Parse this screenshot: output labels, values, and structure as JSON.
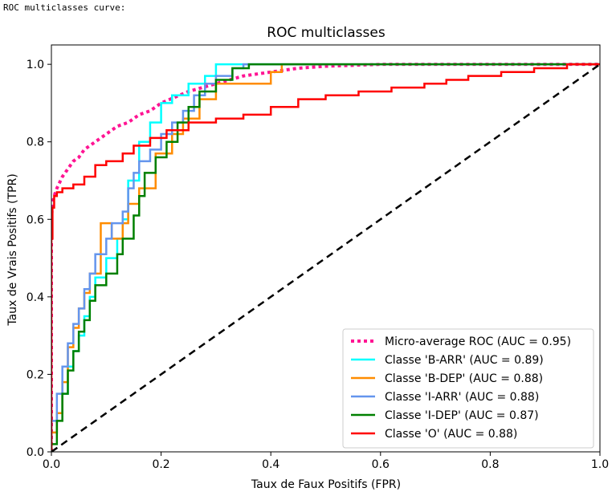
{
  "caption": "ROC multiclasses curve:",
  "chart_data": {
    "type": "line",
    "title": "ROC multiclasses",
    "xlabel": "Taux de Faux Positifs (FPR)",
    "ylabel": "Taux de Vrais Positifs (TPR)",
    "xlim": [
      0.0,
      1.0
    ],
    "ylim": [
      0.0,
      1.05
    ],
    "xticks": [
      "0.0",
      "0.2",
      "0.4",
      "0.6",
      "0.8",
      "1.0"
    ],
    "yticks": [
      "0.0",
      "0.2",
      "0.4",
      "0.6",
      "0.8",
      "1.0"
    ],
    "grid": false,
    "legend_position": "lower-right",
    "diagonal": {
      "color": "#000000",
      "style": "dashed",
      "x": [
        0,
        1
      ],
      "y": [
        0,
        1
      ]
    },
    "series": [
      {
        "name": "Micro-average ROC (AUC = 0.95)",
        "color": "#ff1493",
        "style": "dotted",
        "x": [
          0.0,
          0.0,
          0.002,
          0.005,
          0.01,
          0.02,
          0.03,
          0.04,
          0.05,
          0.06,
          0.08,
          0.1,
          0.12,
          0.14,
          0.16,
          0.18,
          0.2,
          0.25,
          0.3,
          0.35,
          0.4,
          0.45,
          0.5,
          0.6,
          0.7,
          0.8,
          0.9,
          1.0
        ],
        "y": [
          0.0,
          0.6,
          0.64,
          0.66,
          0.68,
          0.71,
          0.73,
          0.75,
          0.76,
          0.78,
          0.8,
          0.82,
          0.84,
          0.85,
          0.87,
          0.88,
          0.9,
          0.93,
          0.95,
          0.97,
          0.98,
          0.99,
          0.995,
          1.0,
          1.0,
          1.0,
          1.0,
          1.0
        ]
      },
      {
        "name": "Classe 'B-ARR' (AUC = 0.89)",
        "color": "#00ffff",
        "style": "step",
        "x": [
          0.0,
          0.0,
          0.01,
          0.01,
          0.02,
          0.02,
          0.03,
          0.03,
          0.04,
          0.04,
          0.05,
          0.05,
          0.06,
          0.06,
          0.07,
          0.07,
          0.08,
          0.08,
          0.1,
          0.1,
          0.12,
          0.12,
          0.13,
          0.13,
          0.14,
          0.14,
          0.16,
          0.16,
          0.18,
          0.18,
          0.2,
          0.2,
          0.22,
          0.22,
          0.25,
          0.25,
          0.28,
          0.28,
          0.3,
          0.3,
          0.35,
          0.35,
          1.0
        ],
        "y": [
          0.0,
          0.05,
          0.05,
          0.1,
          0.1,
          0.15,
          0.15,
          0.22,
          0.22,
          0.26,
          0.26,
          0.3,
          0.3,
          0.35,
          0.35,
          0.4,
          0.4,
          0.45,
          0.45,
          0.5,
          0.5,
          0.55,
          0.55,
          0.6,
          0.6,
          0.7,
          0.7,
          0.8,
          0.8,
          0.85,
          0.85,
          0.9,
          0.9,
          0.92,
          0.92,
          0.95,
          0.95,
          0.97,
          0.97,
          1.0,
          1.0,
          1.0,
          1.0
        ]
      },
      {
        "name": "Classe 'B-DEP' (AUC = 0.88)",
        "color": "#ff8c00",
        "style": "step",
        "x": [
          0.0,
          0.0,
          0.01,
          0.01,
          0.02,
          0.02,
          0.03,
          0.03,
          0.04,
          0.04,
          0.05,
          0.05,
          0.06,
          0.06,
          0.07,
          0.07,
          0.09,
          0.09,
          0.11,
          0.11,
          0.13,
          0.13,
          0.14,
          0.14,
          0.16,
          0.16,
          0.19,
          0.19,
          0.22,
          0.22,
          0.24,
          0.24,
          0.27,
          0.27,
          0.3,
          0.3,
          0.33,
          0.33,
          0.36,
          0.36,
          0.4,
          0.4,
          0.42,
          0.42,
          1.0
        ],
        "y": [
          0.0,
          0.05,
          0.05,
          0.1,
          0.1,
          0.18,
          0.18,
          0.27,
          0.27,
          0.32,
          0.32,
          0.37,
          0.37,
          0.41,
          0.41,
          0.46,
          0.46,
          0.59,
          0.59,
          0.55,
          0.55,
          0.59,
          0.59,
          0.64,
          0.64,
          0.68,
          0.68,
          0.77,
          0.77,
          0.82,
          0.82,
          0.86,
          0.86,
          0.91,
          0.91,
          0.95,
          0.95,
          0.95,
          0.95,
          0.95,
          0.95,
          0.98,
          0.98,
          1.0,
          1.0
        ]
      },
      {
        "name": "Classe 'I-ARR' (AUC = 0.88)",
        "color": "#6495ed",
        "style": "step",
        "x": [
          0.0,
          0.0,
          0.01,
          0.01,
          0.02,
          0.02,
          0.03,
          0.03,
          0.04,
          0.04,
          0.05,
          0.05,
          0.06,
          0.06,
          0.07,
          0.07,
          0.08,
          0.08,
          0.1,
          0.1,
          0.11,
          0.11,
          0.13,
          0.13,
          0.14,
          0.14,
          0.15,
          0.15,
          0.16,
          0.16,
          0.18,
          0.18,
          0.2,
          0.2,
          0.22,
          0.22,
          0.24,
          0.24,
          0.26,
          0.26,
          0.28,
          0.28,
          0.3,
          0.3,
          0.33,
          0.33,
          0.35,
          0.35,
          1.0
        ],
        "y": [
          0.0,
          0.08,
          0.08,
          0.15,
          0.15,
          0.22,
          0.22,
          0.28,
          0.28,
          0.33,
          0.33,
          0.37,
          0.37,
          0.42,
          0.42,
          0.46,
          0.46,
          0.51,
          0.51,
          0.55,
          0.55,
          0.59,
          0.59,
          0.62,
          0.62,
          0.68,
          0.68,
          0.72,
          0.72,
          0.75,
          0.75,
          0.78,
          0.78,
          0.82,
          0.82,
          0.85,
          0.85,
          0.88,
          0.88,
          0.92,
          0.92,
          0.95,
          0.95,
          0.97,
          0.97,
          0.99,
          0.99,
          1.0,
          1.0
        ]
      },
      {
        "name": "Classe 'I-DEP' (AUC = 0.87)",
        "color": "#008000",
        "style": "step",
        "x": [
          0.0,
          0.0,
          0.01,
          0.01,
          0.02,
          0.02,
          0.03,
          0.03,
          0.04,
          0.04,
          0.05,
          0.05,
          0.06,
          0.06,
          0.07,
          0.07,
          0.08,
          0.08,
          0.1,
          0.1,
          0.12,
          0.12,
          0.13,
          0.13,
          0.15,
          0.15,
          0.16,
          0.16,
          0.17,
          0.17,
          0.19,
          0.19,
          0.21,
          0.21,
          0.23,
          0.23,
          0.25,
          0.25,
          0.27,
          0.27,
          0.3,
          0.3,
          0.33,
          0.33,
          0.36,
          0.36,
          1.0
        ],
        "y": [
          0.0,
          0.02,
          0.02,
          0.08,
          0.08,
          0.15,
          0.15,
          0.21,
          0.21,
          0.26,
          0.26,
          0.31,
          0.31,
          0.34,
          0.34,
          0.39,
          0.39,
          0.43,
          0.43,
          0.46,
          0.46,
          0.51,
          0.51,
          0.55,
          0.55,
          0.61,
          0.61,
          0.66,
          0.66,
          0.72,
          0.72,
          0.76,
          0.76,
          0.8,
          0.8,
          0.85,
          0.85,
          0.89,
          0.89,
          0.93,
          0.93,
          0.96,
          0.96,
          0.99,
          0.99,
          1.0,
          1.0
        ]
      },
      {
        "name": "Classe 'O' (AUC = 0.88)",
        "color": "#ff0000",
        "style": "step",
        "x": [
          0.0,
          0.0,
          0.002,
          0.002,
          0.005,
          0.005,
          0.01,
          0.01,
          0.02,
          0.02,
          0.04,
          0.04,
          0.06,
          0.06,
          0.08,
          0.08,
          0.1,
          0.1,
          0.13,
          0.13,
          0.15,
          0.15,
          0.18,
          0.18,
          0.21,
          0.21,
          0.25,
          0.25,
          0.3,
          0.3,
          0.35,
          0.35,
          0.4,
          0.4,
          0.45,
          0.45,
          0.5,
          0.5,
          0.56,
          0.56,
          0.62,
          0.62,
          0.68,
          0.68,
          0.72,
          0.72,
          0.76,
          0.76,
          0.82,
          0.82,
          0.88,
          0.88,
          0.94,
          0.94,
          1.0
        ],
        "y": [
          0.0,
          0.55,
          0.55,
          0.63,
          0.63,
          0.66,
          0.66,
          0.67,
          0.67,
          0.68,
          0.68,
          0.69,
          0.69,
          0.71,
          0.71,
          0.74,
          0.74,
          0.75,
          0.75,
          0.77,
          0.77,
          0.79,
          0.79,
          0.81,
          0.81,
          0.83,
          0.83,
          0.85,
          0.85,
          0.86,
          0.86,
          0.87,
          0.87,
          0.89,
          0.89,
          0.91,
          0.91,
          0.92,
          0.92,
          0.93,
          0.93,
          0.94,
          0.94,
          0.95,
          0.95,
          0.96,
          0.96,
          0.97,
          0.97,
          0.98,
          0.98,
          0.99,
          0.99,
          1.0,
          1.0
        ]
      }
    ]
  }
}
